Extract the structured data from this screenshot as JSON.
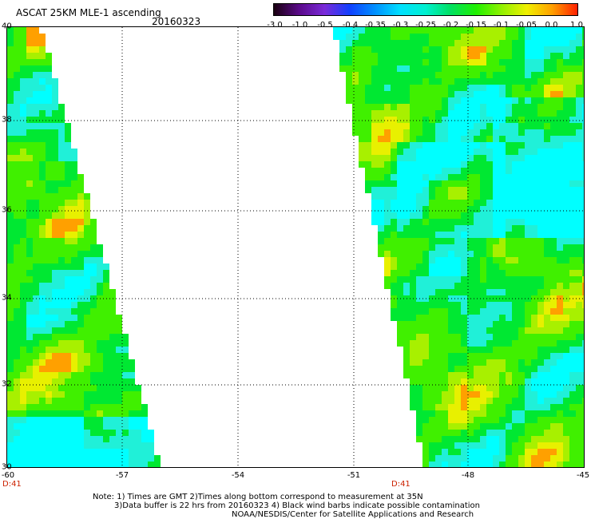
{
  "header": {
    "title": "ASCAT 25KM MLE-1 ascending",
    "date": "20160323"
  },
  "colorbar": {
    "ticks": [
      "-3.0",
      "-1.0",
      "-0.5",
      "-0.4",
      "-0.35",
      "-0.3",
      "-0.25",
      "-0.2",
      "-0.15",
      "-0.1",
      "-0.05",
      "0.0",
      "1.0"
    ],
    "colors": [
      "#1a0010",
      "#5a0a8a",
      "#7a2ad8",
      "#1040ff",
      "#0090ff",
      "#00e0ff",
      "#00f0d0",
      "#00e060",
      "#20f000",
      "#90f000",
      "#f0f000",
      "#ffa000",
      "#ff2000"
    ]
  },
  "map": {
    "lat_labels": [
      "40",
      "38",
      "36",
      "34",
      "32",
      "30"
    ],
    "lon_labels": [
      "-60",
      "-57",
      "-54",
      "-51",
      "-48",
      "-45"
    ],
    "time_tags": [
      "D:41",
      "D:41"
    ]
  },
  "notes": {
    "line1": "Note: 1) Times are GMT 2)Times along bottom correspond to measurement at 35N",
    "line2": "3)Data buffer is 22 hrs from 20160323 4) Black wind barbs indicate possible contamination",
    "line3": "NOAA/NESDIS/Center for Satellite Applications and Research"
  }
}
